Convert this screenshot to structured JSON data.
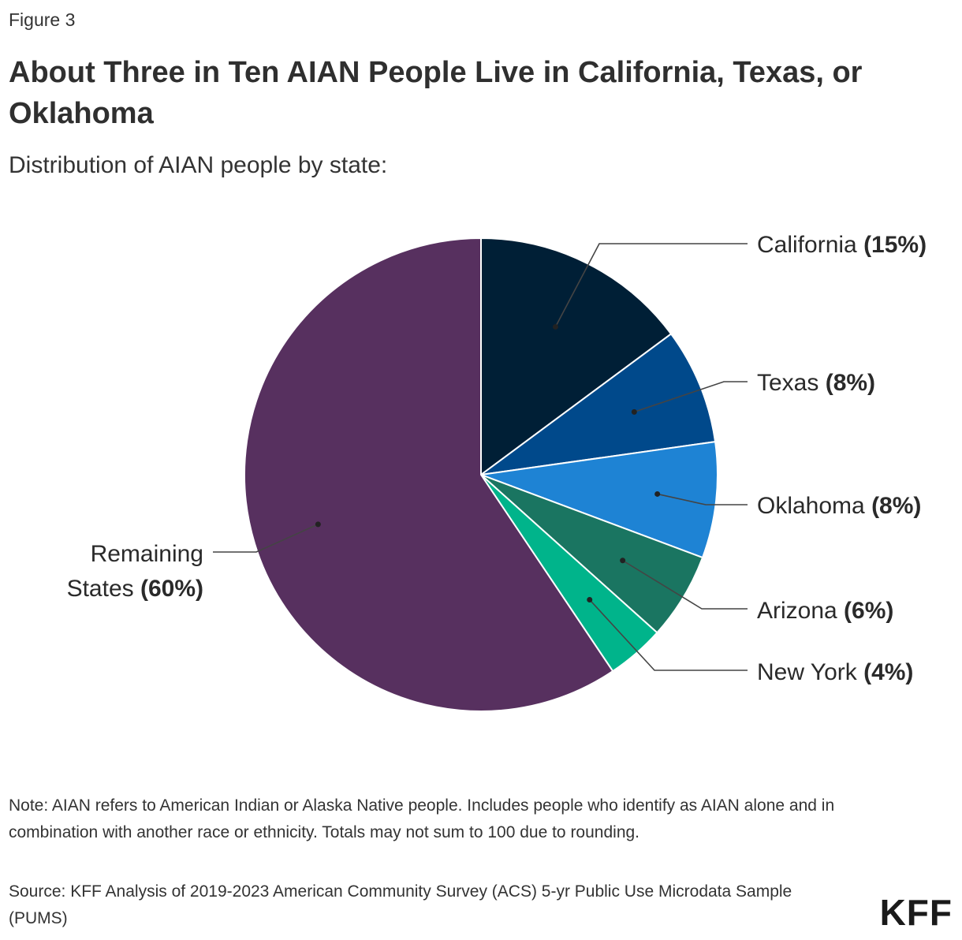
{
  "figure_label": "Figure 3",
  "title": "About Three in Ten AIAN People Live in California, Texas, or Oklahoma",
  "subtitle": "Distribution of AIAN people by state:",
  "note": "Note: AIAN refers to American Indian or Alaska Native people. Includes people who identify as AIAN alone and in combination with another race or ethnicity. Totals may not sum to 100 due to rounding.",
  "source": "Source: KFF Analysis of 2019-2023 American Community Survey (ACS) 5-yr Public Use Microdata Sample (PUMS)",
  "logo": "KFF",
  "chart_data": {
    "type": "pie",
    "slices": [
      {
        "name": "California",
        "value": 15,
        "label": "(15%)",
        "color": "#001f36"
      },
      {
        "name": "Texas",
        "value": 8,
        "label": "(8%)",
        "color": "#00498b"
      },
      {
        "name": "Oklahoma",
        "value": 8,
        "label": "(8%)",
        "color": "#1e83d4"
      },
      {
        "name": "Arizona",
        "value": 6,
        "label": "(6%)",
        "color": "#1a7561"
      },
      {
        "name": "New York",
        "value": 4,
        "label": "(4%)",
        "color": "#00b48b"
      },
      {
        "name": "Remaining States",
        "name_lines": [
          "Remaining",
          "States"
        ],
        "value": 60,
        "label": "(60%)",
        "color": "#57305f"
      }
    ]
  }
}
